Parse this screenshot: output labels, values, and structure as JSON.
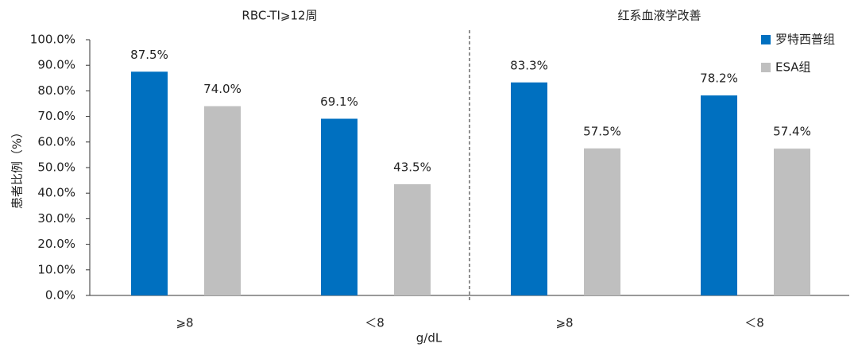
{
  "chart_data": {
    "type": "bar",
    "groups": [
      "RBC-TI⩾12周",
      "红系血液学改善"
    ],
    "categories": [
      "⩾8",
      "＜8",
      "⩾8",
      "＜8"
    ],
    "x_label": "g/dL",
    "y_label": "患者比例（%）",
    "series": [
      {
        "name": "罗特西普组",
        "color": "#0070c0",
        "values": [
          87.5,
          69.1,
          83.3,
          78.2
        ],
        "value_labels": [
          "87.5%",
          "69.1%",
          "83.3%",
          "78.2%"
        ]
      },
      {
        "name": "ESA组",
        "color": "#bfbfbf",
        "values": [
          74.0,
          43.5,
          57.5,
          57.4
        ],
        "value_labels": [
          "74.0%",
          "43.5%",
          "57.5%",
          "57.4%"
        ]
      }
    ],
    "ylim": [
      0,
      100
    ],
    "yticks": [
      {
        "value": 0,
        "label": "0.0%"
      },
      {
        "value": 10,
        "label": "10.0%"
      },
      {
        "value": 20,
        "label": "20.0%"
      },
      {
        "value": 30,
        "label": "30.0%"
      },
      {
        "value": 40,
        "label": "40.0%"
      },
      {
        "value": 50,
        "label": "50.0%"
      },
      {
        "value": 60,
        "label": "60.0%"
      },
      {
        "value": 70,
        "label": "70.0%"
      },
      {
        "value": 80,
        "label": "80.0%"
      },
      {
        "value": 90,
        "label": "90.0%"
      },
      {
        "value": 100,
        "label": "100.0%"
      }
    ],
    "legend": "top-right"
  }
}
